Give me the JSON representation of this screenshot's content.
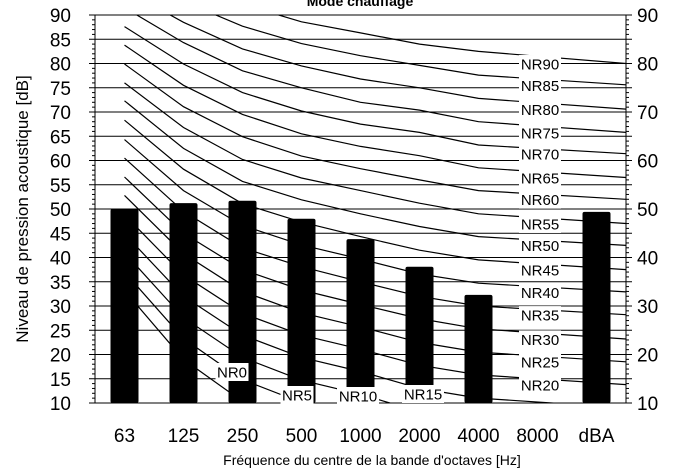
{
  "chart_data": {
    "type": "bar",
    "title": "Mode chauffage",
    "xlabel": "Fréquence du centre de la bande d'octaves [Hz]",
    "ylabel": "Niveau de pression acoustique [dB]",
    "ylim": [
      10,
      90
    ],
    "y_ticks": [
      "10",
      "15",
      "20",
      "25",
      "30",
      "35",
      "40",
      "45",
      "50",
      "55",
      "60",
      "65",
      "70",
      "75",
      "80",
      "85",
      "90"
    ],
    "y2_ticks": [
      "10",
      "20",
      "30",
      "40",
      "50",
      "60",
      "70",
      "80",
      "90"
    ],
    "categories": [
      "63",
      "125",
      "250",
      "500",
      "1000",
      "2000",
      "4000",
      "8000",
      "dBA"
    ],
    "values": [
      50.0,
      51.2,
      51.7,
      48.0,
      43.8,
      38.1,
      32.3,
      null,
      49.4
    ],
    "grid": true,
    "bar_color": "#000000",
    "nr_curves": [
      {
        "label": "NR90",
        "values": [
          103.1,
          96.9,
          92.2,
          88.6,
          86.3,
          84.0,
          82.5,
          80.0
        ]
      },
      {
        "label": "NR85",
        "values": [
          99.1,
          92.8,
          87.7,
          84.1,
          81.6,
          79.6,
          77.6,
          75.6
        ]
      },
      {
        "label": "NR80",
        "values": [
          95.2,
          88.5,
          83.0,
          79.5,
          76.8,
          75.0,
          72.8,
          70.6
        ]
      },
      {
        "label": "NR75",
        "values": [
          91.5,
          84.3,
          78.5,
          75.0,
          72.0,
          70.4,
          68.0,
          65.8
        ]
      },
      {
        "label": "NR70",
        "values": [
          87.6,
          79.9,
          74.0,
          70.2,
          67.5,
          65.8,
          63.2,
          61.4
        ]
      },
      {
        "label": "NR65",
        "values": [
          83.8,
          75.5,
          69.5,
          65.5,
          62.9,
          61.0,
          58.5,
          56.5
        ]
      },
      {
        "label": "NR60",
        "values": [
          79.9,
          71.1,
          64.9,
          60.9,
          58.3,
          56.0,
          53.8,
          52.0
        ]
      },
      {
        "label": "NR55",
        "values": [
          76.0,
          66.8,
          60.2,
          56.4,
          53.8,
          51.2,
          49.0,
          47.0
        ]
      },
      {
        "label": "NR50",
        "values": [
          72.3,
          62.5,
          55.7,
          51.9,
          49.0,
          46.4,
          44.3,
          42.5
        ]
      },
      {
        "label": "NR45",
        "values": [
          68.3,
          58.2,
          51.1,
          47.3,
          44.3,
          41.5,
          39.5,
          37.5
        ]
      },
      {
        "label": "NR40",
        "values": [
          64.3,
          53.8,
          46.6,
          42.6,
          39.7,
          36.6,
          34.7,
          32.9
        ]
      },
      {
        "label": "NR35",
        "values": [
          60.5,
          49.5,
          42.0,
          38.1,
          35.0,
          32.0,
          30.0,
          28.2
        ]
      },
      {
        "label": "NR30",
        "values": [
          56.6,
          45.0,
          37.5,
          33.3,
          30.3,
          27.4,
          25.3,
          23.2
        ]
      },
      {
        "label": "NR25",
        "values": [
          52.8,
          40.8,
          33.0,
          28.6,
          25.7,
          22.5,
          20.5,
          18.5
        ]
      },
      {
        "label": "NR20",
        "values": [
          48.8,
          36.4,
          28.5,
          24.0,
          21.1,
          17.8,
          15.8,
          13.8
        ]
      },
      {
        "label": "NR15",
        "values": [
          44.9,
          32.0,
          24.0,
          19.4,
          16.5,
          13.0,
          11.0,
          9.0
        ]
      },
      {
        "label": "NR10",
        "values": [
          41.0,
          27.6,
          19.4,
          14.7,
          11.8,
          8.2,
          6.2,
          4.2
        ]
      },
      {
        "label": "NR5",
        "values": [
          37.0,
          23.3,
          14.8,
          10.1,
          7.2,
          3.5,
          1.5,
          -0.5
        ]
      },
      {
        "label": "NR0",
        "values": [
          33.2,
          19.0,
          10.3,
          5.5,
          2.5,
          -1.3,
          -3.3,
          -5.3
        ]
      }
    ]
  }
}
